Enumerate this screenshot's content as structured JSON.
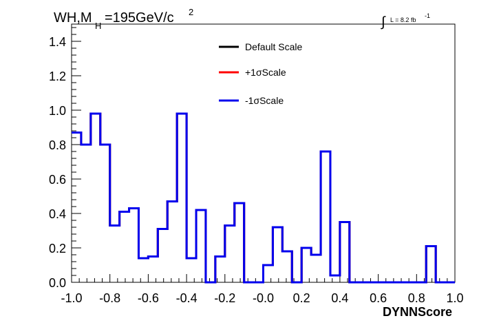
{
  "title": {
    "prefix": "WH,M",
    "subscript": "H",
    "suffix": "=195GeV/c",
    "superscript": "2"
  },
  "luminosity": {
    "integral_symbol": "∫",
    "text": "L = 8.2 fb",
    "superscript": "-1"
  },
  "chart_data": {
    "type": "histogram-step",
    "xlabel": "DYNNScore",
    "ylabel": "",
    "xlim": [
      -1.0,
      1.0
    ],
    "ylim": [
      0.0,
      1.5
    ],
    "x_ticks": [
      -1.0,
      -0.8,
      -0.6,
      -0.4,
      -0.2,
      0.0,
      0.2,
      0.4,
      0.6,
      0.8,
      1.0
    ],
    "x_tick_labels": [
      "-1.0",
      "-0.8",
      "-0.6",
      "-0.4",
      "-0.2",
      "-0.0",
      "0.2",
      "0.4",
      "0.6",
      "0.8",
      "1.0"
    ],
    "y_ticks": [
      0.0,
      0.2,
      0.4,
      0.6,
      0.8,
      1.0,
      1.2,
      1.4
    ],
    "y_tick_labels": [
      "0.0",
      "0.2",
      "0.4",
      "0.6",
      "0.8",
      "1.0",
      "1.2",
      "1.4"
    ],
    "bin_edges": [
      -1.0,
      -0.95,
      -0.9,
      -0.85,
      -0.8,
      -0.75,
      -0.7,
      -0.65,
      -0.6,
      -0.55,
      -0.5,
      -0.45,
      -0.4,
      -0.35,
      -0.3,
      -0.25,
      -0.2,
      -0.15,
      -0.1,
      -0.05,
      0.0,
      0.05,
      0.1,
      0.15,
      0.2,
      0.25,
      0.3,
      0.35,
      0.4,
      0.45,
      0.5,
      0.55,
      0.6,
      0.65,
      0.7,
      0.75,
      0.8,
      0.85,
      0.9,
      0.95,
      1.0
    ],
    "series": [
      {
        "name": "Default Scale",
        "color": "#000000",
        "values": [
          0.87,
          0.8,
          0.98,
          0.8,
          0.33,
          0.41,
          0.43,
          0.14,
          0.15,
          0.31,
          0.47,
          0.98,
          0.14,
          0.42,
          0.0,
          0.15,
          0.33,
          0.46,
          0.0,
          0.0,
          0.1,
          0.32,
          0.18,
          0.0,
          0.2,
          0.16,
          0.76,
          0.04,
          0.35,
          0.0,
          0.0,
          0.0,
          0.0,
          0.0,
          0.0,
          0.0,
          0.0,
          0.21,
          0.0,
          0.0
        ]
      },
      {
        "name": "+1σScale",
        "color": "#ff0000",
        "values": [
          0.87,
          0.8,
          0.98,
          0.8,
          0.33,
          0.41,
          0.43,
          0.14,
          0.15,
          0.31,
          0.47,
          0.98,
          0.14,
          0.42,
          0.0,
          0.15,
          0.33,
          0.46,
          0.0,
          0.0,
          0.1,
          0.32,
          0.18,
          0.0,
          0.2,
          0.16,
          0.76,
          0.04,
          0.35,
          0.0,
          0.0,
          0.0,
          0.0,
          0.0,
          0.0,
          0.0,
          0.0,
          0.21,
          0.0,
          0.0
        ]
      },
      {
        "name": "-1σScale",
        "color": "#0000ee",
        "values": [
          0.87,
          0.8,
          0.98,
          0.8,
          0.33,
          0.41,
          0.43,
          0.14,
          0.15,
          0.31,
          0.47,
          0.98,
          0.14,
          0.42,
          0.0,
          0.15,
          0.33,
          0.46,
          0.0,
          0.0,
          0.1,
          0.32,
          0.18,
          0.0,
          0.2,
          0.16,
          0.76,
          0.04,
          0.35,
          0.0,
          0.0,
          0.0,
          0.0,
          0.0,
          0.0,
          0.0,
          0.0,
          0.21,
          0.0,
          0.0
        ]
      }
    ],
    "legend_position": "top-center",
    "grid": false
  }
}
